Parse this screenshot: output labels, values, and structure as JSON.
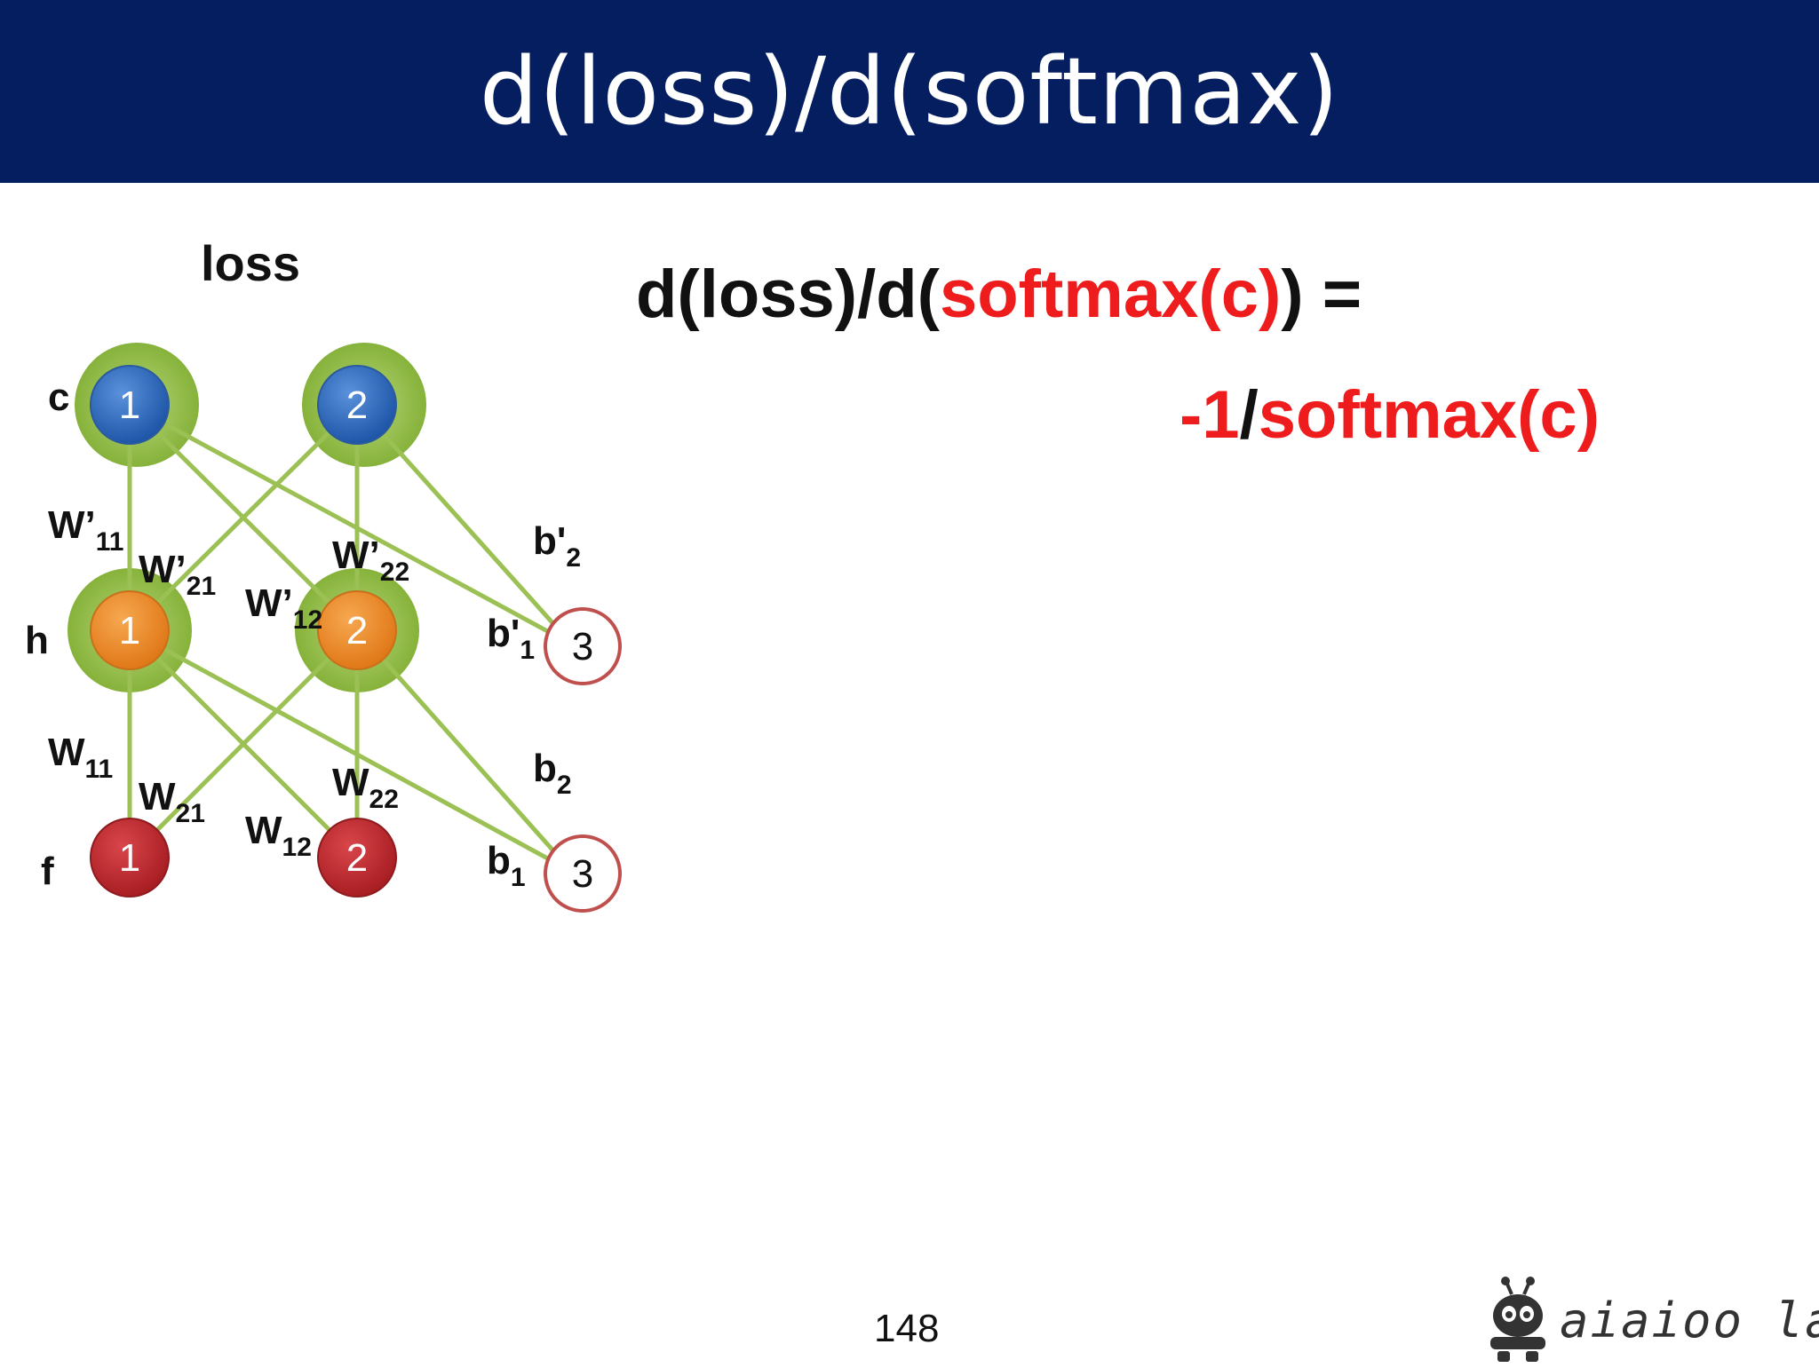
{
  "slide": {
    "title": "d(loss)/d(softmax)",
    "page_number": "148"
  },
  "equation": {
    "line1_prefix": "d(loss)/d(",
    "line1_red": "softmax(c)",
    "line1_suffix": ") =",
    "line2_red1": "-1",
    "line2_slash": "/",
    "line2_red2": "softmax(c)"
  },
  "diagram": {
    "top_label": "loss",
    "layer_labels": {
      "c": "c",
      "h": "h",
      "f": "f"
    },
    "nodes": {
      "c1": "1",
      "c2": "2",
      "h1": "1",
      "h2": "2",
      "f1": "1",
      "f2": "2",
      "bias_h": "3",
      "bias_f": "3"
    },
    "weights": {
      "wp11": {
        "base": "W’",
        "sub": "11"
      },
      "wp21": {
        "base": "W’",
        "sub": "21"
      },
      "wp12": {
        "base": "W’",
        "sub": "12"
      },
      "wp22": {
        "base": "W’",
        "sub": "22"
      },
      "bp2": {
        "base": "b'",
        "sub": "2"
      },
      "bp1": {
        "base": "b'",
        "sub": "1"
      },
      "w11": {
        "base": "W",
        "sub": "11"
      },
      "w21": {
        "base": "W",
        "sub": "21"
      },
      "w12": {
        "base": "W",
        "sub": "12"
      },
      "w22": {
        "base": "W",
        "sub": "22"
      },
      "b2": {
        "base": "b",
        "sub": "2"
      },
      "b1": {
        "base": "b",
        "sub": "1"
      }
    },
    "colors": {
      "edge": "#9bc053",
      "halo": "#8db83f",
      "output_node": "#2f6fc0",
      "hidden_node": "#ee8a28",
      "input_node": "#c0282d",
      "bias_ring": "#c0504d"
    }
  },
  "logo": {
    "text": "aiaioo labs",
    "icon": "robot-icon"
  }
}
